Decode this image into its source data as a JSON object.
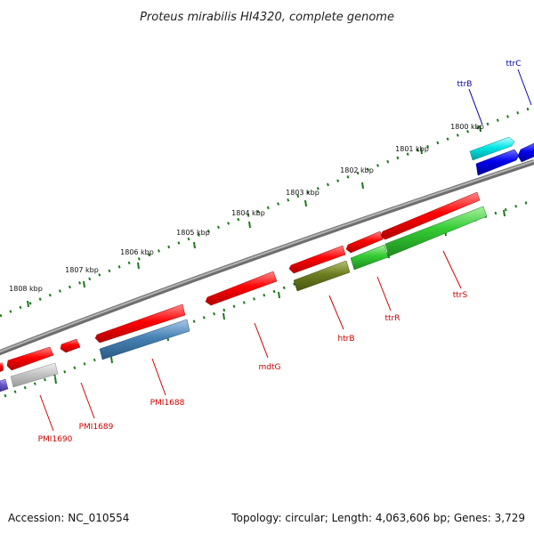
{
  "title": "Proteus mirabilis HI4320, complete genome",
  "footer": {
    "accession": "Accession: NC_010554",
    "stats": "Topology: circular; Length: 4,063,606 bp; Genes: 3,729"
  },
  "colors": {
    "backbone": "#8a8a8a",
    "ticks": "#1a7a1a",
    "label_red": "#cc0000",
    "label_blue": "#0000aa"
  },
  "kbp_labels": [
    "1800 kbp",
    "1801 kbp",
    "1802 kbp",
    "1803 kbp",
    "1804 kbp",
    "1805 kbp",
    "1806 kbp",
    "1807 kbp",
    "1808 kbp"
  ],
  "gene_labels": [
    "ttrC",
    "ttrB",
    "ttrS",
    "ttrR",
    "htrB",
    "mdtG",
    "PMI1688",
    "PMI1689",
    "PMI1690"
  ]
}
